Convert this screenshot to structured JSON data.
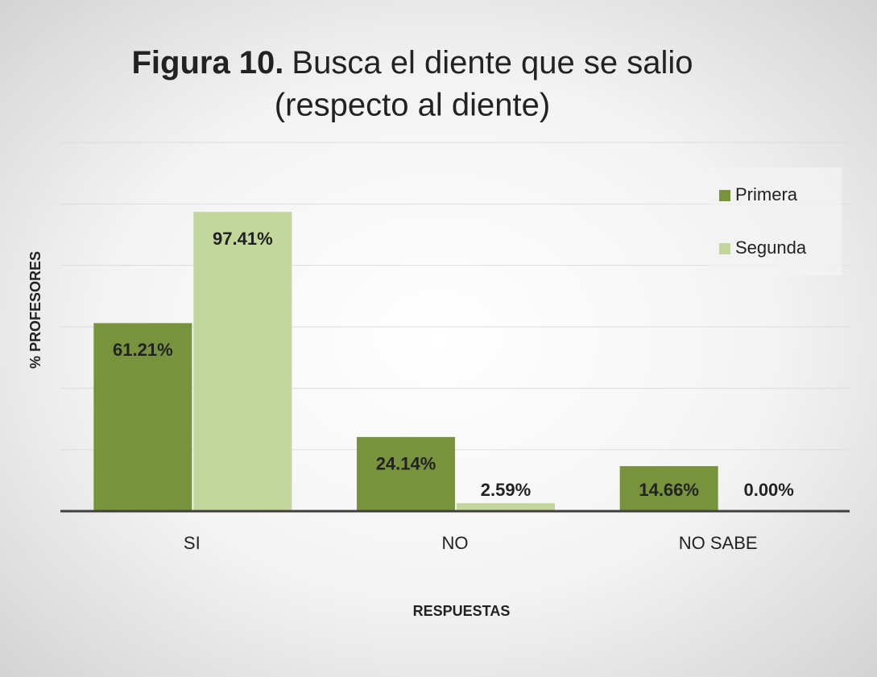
{
  "chart_data": {
    "type": "bar",
    "title": {
      "label": "Figura 10.",
      "lines": [
        "Busca el diente que se salio",
        "(respecto al diente)"
      ]
    },
    "x_label": "RESPUESTAS",
    "y_label": "% PROFESORES",
    "categories": [
      "SI",
      "NO",
      "NO SABE"
    ],
    "series": [
      {
        "name": "Primera",
        "color": "#77933c",
        "values": [
          61.21,
          24.14,
          14.66
        ],
        "value_labels": [
          "61.21%",
          "24.14%",
          "14.66%"
        ]
      },
      {
        "name": "Segunda",
        "color": "#c3d69b",
        "values": [
          97.41,
          2.59,
          0.0
        ],
        "value_labels": [
          "97.41%",
          "2.59%",
          "0.00%"
        ]
      }
    ],
    "ylim": [
      0,
      120
    ],
    "yticks": [
      0,
      20,
      40,
      60,
      80,
      100,
      120
    ],
    "grid": true,
    "legend": "top-right"
  }
}
